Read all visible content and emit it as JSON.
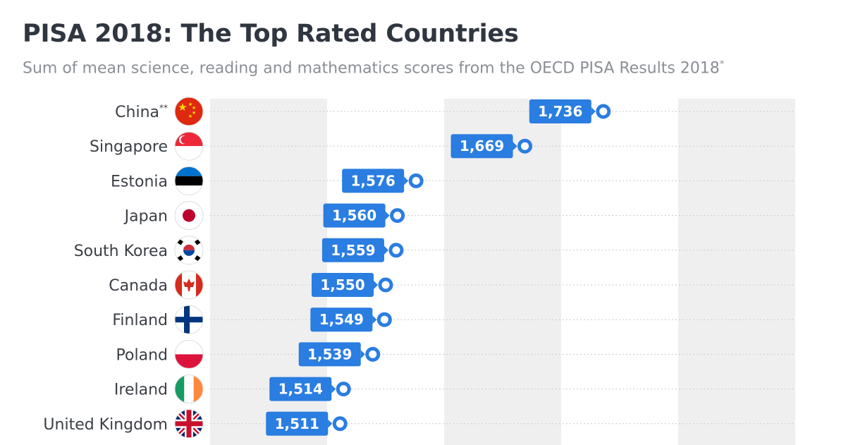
{
  "title": "PISA 2018: The Top Rated Countries",
  "subtitle": "Sum of mean science, reading and mathematics scores from the OECD PISA Results 2018",
  "subtitle_note": "*",
  "colors": {
    "accent": "#2a7de1",
    "band": "#efefef",
    "title": "#2f3640",
    "subtitle": "#8a8f96"
  },
  "chart_data": {
    "type": "dot",
    "categories": [
      "China",
      "Singapore",
      "Estonia",
      "Japan",
      "South Korea",
      "Canada",
      "Finland",
      "Poland",
      "Ireland",
      "United Kingdom"
    ],
    "category_notes": [
      "**",
      "",
      "",
      "",
      "",
      "",
      "",
      "",
      "",
      ""
    ],
    "flag_icons": [
      "china-flag-icon",
      "singapore-flag-icon",
      "estonia-flag-icon",
      "japan-flag-icon",
      "south-korea-flag-icon",
      "canada-flag-icon",
      "finland-flag-icon",
      "poland-flag-icon",
      "ireland-flag-icon",
      "united-kingdom-flag-icon"
    ],
    "values": [
      1736,
      1669,
      1576,
      1560,
      1559,
      1550,
      1549,
      1539,
      1514,
      1511
    ],
    "value_labels": [
      "1,736",
      "1,669",
      "1,576",
      "1,560",
      "1,559",
      "1,550",
      "1,549",
      "1,539",
      "1,514",
      "1,511"
    ],
    "xlim": [
      1400,
      1900
    ],
    "grid": "alternating vertical bands",
    "legend": "none"
  }
}
